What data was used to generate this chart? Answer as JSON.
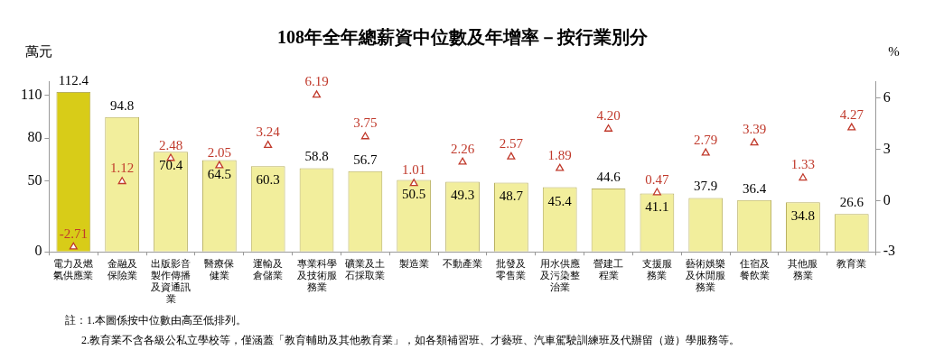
{
  "chart_data": {
    "type": "bar",
    "title": "108年全年總薪資中位數及年增率－按行業別分",
    "ylabel": "萬元",
    "y2label": "%",
    "categories": [
      "電力及燃氣供應業",
      "金融及保險業",
      "出版影音製作傳播及資通訊業",
      "醫療保健業",
      "運輸及倉儲業",
      "專業科學及技術服務業",
      "礦業及土石採取業",
      "製造業",
      "不動產業",
      "批發及零售業",
      "用水供應及污染整治業",
      "營建工程業",
      "支援服務業",
      "藝術娛樂及休閒服務業",
      "住宿及餐飲業",
      "其他服務業",
      "教育業"
    ],
    "series": [
      {
        "colors": [
          "#d8cc18",
          "#f2ee9c",
          "#f2ee9c",
          "#f2ee9c",
          "#f2ee9c",
          "#f2ee9c",
          "#f2ee9c",
          "#f2ee9c",
          "#f2ee9c",
          "#f2ee9c",
          "#f2ee9c",
          "#f2ee9c",
          "#f2ee9c",
          "#f2ee9c",
          "#f2ee9c",
          "#f2ee9c",
          "#f2ee9c"
        ],
        "values": [
          112.4,
          94.8,
          70.4,
          64.5,
          60.3,
          58.8,
          56.7,
          50.5,
          49.3,
          48.7,
          45.4,
          44.6,
          41.1,
          37.9,
          36.4,
          34.8,
          26.6
        ]
      },
      {
        "type": "scatter",
        "axis": "y2",
        "color": "#c0392b",
        "x": [
          "電力及燃氣供應業",
          "金融及保險業",
          "出版影音製作傳播及資通訊業",
          "醫療保健業",
          "運輸及倉儲業",
          "專業科學及技術服務業",
          "礦業及土石採取業",
          "製造業",
          "不動產業",
          "批發及零售業",
          "用水供應及污染整治業",
          "營建工程業",
          "支援服務業",
          "藝術娛樂及休閒服務業",
          "住宿及餐飲業",
          "其他服務業",
          "教育業"
        ],
        "values": [
          -2.71,
          1.12,
          2.48,
          2.05,
          3.24,
          6.19,
          3.75,
          1.01,
          2.26,
          2.57,
          1.89,
          4.2,
          0.47,
          2.79,
          3.39,
          1.33,
          4.27
        ],
        "value_labels": [
          "-2.71",
          "1.12",
          "2.48",
          "2.05",
          "3.24",
          "6.19",
          "3.75",
          "1.01",
          "2.26",
          "2.57",
          "1.89",
          "4.20",
          "0.47",
          "2.79",
          "3.39",
          "1.33",
          "4.27"
        ]
      }
    ],
    "ylim": [
      0,
      120
    ],
    "yticks": [
      0,
      50,
      80,
      110
    ],
    "y2lim": [
      -3,
      7
    ],
    "y2ticks": [
      -3,
      0,
      3,
      6
    ],
    "data_labels": true,
    "grid": false,
    "legend": false,
    "marker": "triangle",
    "annotations": [
      "註：1.本圖係按中位數由高至低排列。",
      "2.教育業不含各級公私立學校等，僅涵蓋「教育輔助及其他教育業」，如各類補習班、才藝班、汽車駕駛訓練班及代辦留（遊）學服務等。"
    ]
  }
}
